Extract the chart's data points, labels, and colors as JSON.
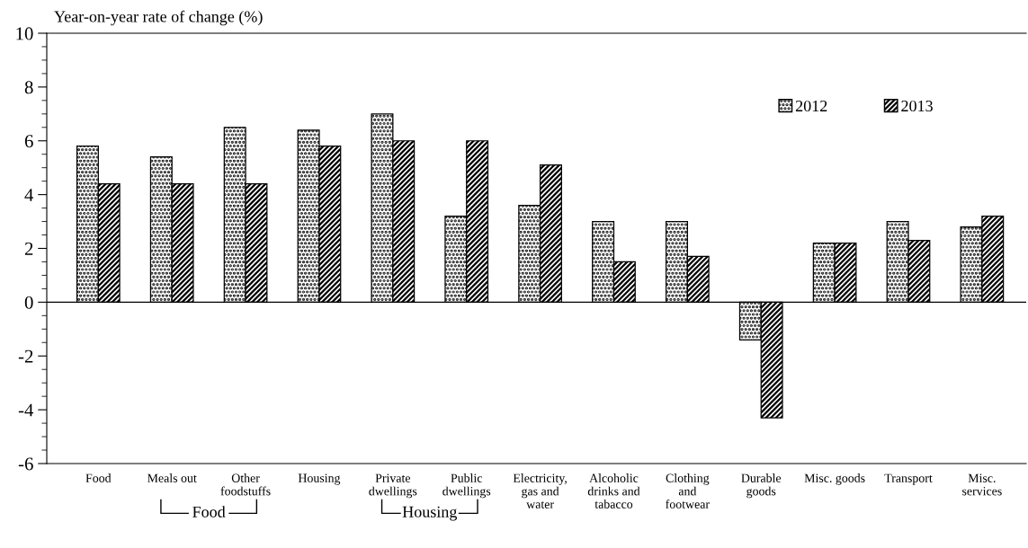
{
  "chart_data": {
    "type": "bar",
    "ylabel": "Year-on-year rate of change (%)",
    "categories": [
      "Food",
      "Meals out",
      "Other\nfoodstuffs",
      "Housing",
      "Private\ndwellings",
      "Public\ndwellings",
      "Electricity,\ngas and\nwater",
      "Alcoholic\ndrinks and\ntabacco",
      "Clothing\nand\nfootwear",
      "Durable\ngoods",
      "Misc. goods",
      "Transport",
      "Misc.\nservices"
    ],
    "series": [
      {
        "name": "2012",
        "color": "#000000",
        "values": [
          5.8,
          5.4,
          6.5,
          6.4,
          7.0,
          3.2,
          3.6,
          3.0,
          3.0,
          -1.4,
          2.2,
          3.0,
          2.8
        ]
      },
      {
        "name": "2013",
        "color": "#000000",
        "values": [
          4.4,
          4.4,
          4.4,
          5.8,
          6.0,
          6.0,
          5.1,
          1.5,
          1.7,
          -4.3,
          2.2,
          2.3,
          3.2
        ]
      }
    ],
    "ylim": [
      -6,
      10
    ],
    "yticks": [
      -6,
      -4,
      -2,
      0,
      2,
      4,
      6,
      8,
      10
    ],
    "grid": false,
    "legend": "top right",
    "ref_lines": [
      {
        "axis": "y",
        "value": 0
      }
    ],
    "annotations": [
      "Food",
      "Housing"
    ]
  }
}
